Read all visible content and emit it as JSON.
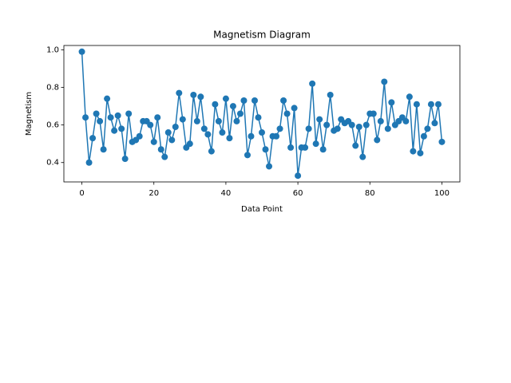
{
  "chart_data": {
    "type": "line",
    "title": "Magnetism Diagram",
    "x_label": "Data Point",
    "y_label": "Magnetism",
    "x": [
      0,
      1,
      2,
      3,
      4,
      5,
      6,
      7,
      8,
      9,
      10,
      11,
      12,
      13,
      14,
      15,
      16,
      17,
      18,
      19,
      20,
      21,
      22,
      23,
      24,
      25,
      26,
      27,
      28,
      29,
      30,
      31,
      32,
      33,
      34,
      35,
      36,
      37,
      38,
      39,
      40,
      41,
      42,
      43,
      44,
      45,
      46,
      47,
      48,
      49,
      50,
      51,
      52,
      53,
      54,
      55,
      56,
      57,
      58,
      59,
      60,
      61,
      62,
      63,
      64,
      65,
      66,
      67,
      68,
      69,
      70,
      71,
      72,
      73,
      74,
      75,
      76,
      77,
      78,
      79,
      80,
      81,
      82,
      83,
      84,
      85,
      86,
      87,
      88,
      89,
      90,
      91,
      92,
      93,
      94,
      95,
      96,
      97,
      98,
      99,
      100
    ],
    "values": [
      0.99,
      0.64,
      0.4,
      0.53,
      0.66,
      0.62,
      0.47,
      0.74,
      0.64,
      0.57,
      0.65,
      0.58,
      0.42,
      0.66,
      0.51,
      0.52,
      0.54,
      0.62,
      0.62,
      0.6,
      0.51,
      0.64,
      0.47,
      0.43,
      0.56,
      0.52,
      0.59,
      0.77,
      0.63,
      0.48,
      0.5,
      0.76,
      0.62,
      0.75,
      0.58,
      0.55,
      0.46,
      0.71,
      0.62,
      0.56,
      0.74,
      0.53,
      0.7,
      0.62,
      0.66,
      0.73,
      0.44,
      0.54,
      0.73,
      0.64,
      0.56,
      0.47,
      0.38,
      0.54,
      0.54,
      0.58,
      0.73,
      0.66,
      0.48,
      0.69,
      0.33,
      0.48,
      0.48,
      0.58,
      0.82,
      0.5,
      0.63,
      0.47,
      0.6,
      0.76,
      0.57,
      0.58,
      0.63,
      0.61,
      0.62,
      0.6,
      0.49,
      0.59,
      0.43,
      0.6,
      0.66,
      0.66,
      0.52,
      0.62,
      0.83,
      0.58,
      0.72,
      0.6,
      0.62,
      0.64,
      0.62,
      0.75,
      0.46,
      0.71,
      0.45,
      0.54,
      0.58,
      0.71,
      0.61,
      0.71,
      0.51
    ],
    "color": "#1f77b4",
    "xlim": [
      -5,
      105
    ],
    "xticks": [
      0,
      20,
      40,
      60,
      80,
      100
    ],
    "ylim": [
      0.297,
      1.023
    ],
    "yticks": [
      0.4,
      0.6,
      0.8,
      {
        "value": 1,
        "label": "1.0"
      }
    ],
    "grid": false
  }
}
